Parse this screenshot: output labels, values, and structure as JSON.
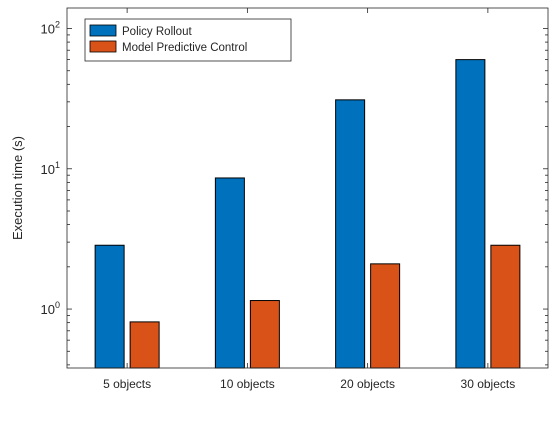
{
  "chart_data": {
    "type": "bar",
    "title": "",
    "xlabel": "",
    "ylabel": "Execution time (s)",
    "yscale": "log",
    "ylim": [
      0.38,
      140
    ],
    "y_ticks": [
      {
        "value": 1,
        "base": "10",
        "exp": "0"
      },
      {
        "value": 10,
        "base": "10",
        "exp": "1"
      },
      {
        "value": 100,
        "base": "10",
        "exp": "2"
      }
    ],
    "categories": [
      "5 objects",
      "10 objects",
      "20 objects",
      "30 objects"
    ],
    "series": [
      {
        "name": "Policy Rollout",
        "color": "#0072BD",
        "values": [
          2.85,
          8.6,
          31,
          60
        ]
      },
      {
        "name": "Model Predictive Control",
        "color": "#D95319",
        "values": [
          0.81,
          1.15,
          2.1,
          2.85
        ]
      }
    ],
    "legend": "top-left",
    "grid": false
  }
}
